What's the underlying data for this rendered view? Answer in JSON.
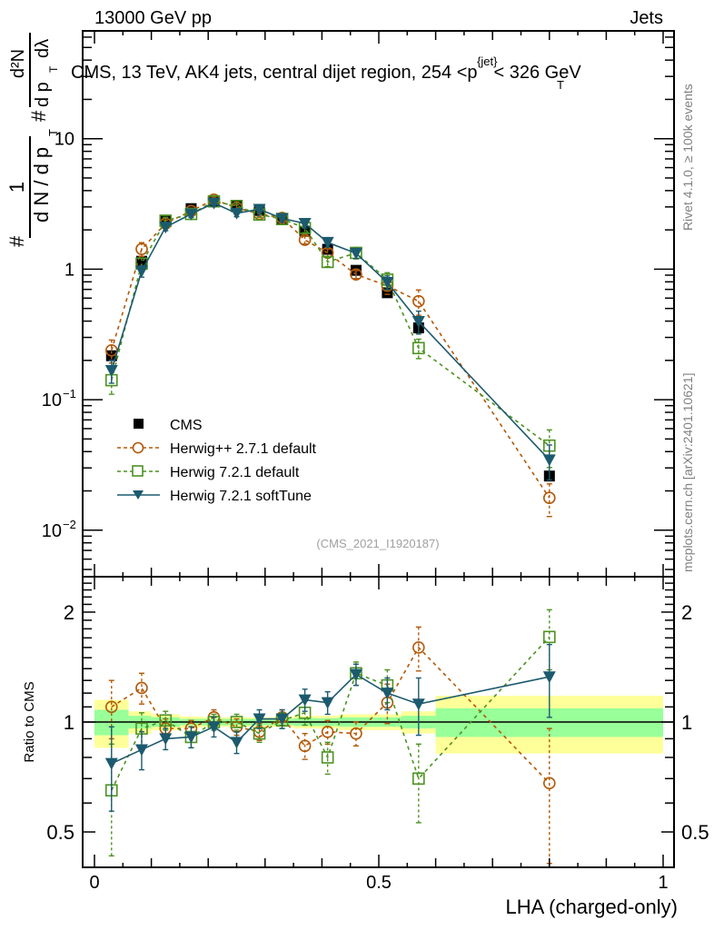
{
  "header": {
    "left": "13000 GeV pp",
    "right": "Jets"
  },
  "side_labels": {
    "rivet": "Rivet 4.1.0, ≥ 100k events",
    "mcplots": "mcplots.cern.ch [arXiv:2401.10621]"
  },
  "chart_data": {
    "type": "line",
    "title": "CMS, 13 TeV, AK4 jets, central dijet region, 254 <p_T^{jet}< 326 GeV",
    "analysis_id": "(CMS_2021_I1920187)",
    "xlabel": "LHA (charged-only)",
    "ylabel": "1/dN/dpT · d²N/dpT dλ",
    "ylabel_parts": {
      "lead": "#",
      "num1": "1",
      "den1": "d N / d p",
      "sub": "T",
      "hash2": "#",
      "num2": "d²N",
      "den2": "d p",
      "den2b": "dλ"
    },
    "xlim": [
      -0.02,
      1.02
    ],
    "ylim": [
      0.0044,
      67
    ],
    "yscale": "log",
    "x_ticks": [
      0,
      0.5,
      1
    ],
    "x_tick_labels": [
      "0",
      "0.5",
      "1"
    ],
    "y_ticks": [
      0.01,
      0.1,
      1,
      10
    ],
    "y_tick_labels": [
      [
        "10",
        "−2"
      ],
      [
        "10",
        "−1"
      ],
      [
        "1",
        ""
      ],
      [
        "10",
        ""
      ]
    ],
    "legend_position": "center-left",
    "x": [
      0.03,
      0.083,
      0.125,
      0.17,
      0.21,
      0.25,
      0.29,
      0.33,
      0.37,
      0.41,
      0.46,
      0.515,
      0.57,
      0.8
    ],
    "bin_edges": [
      0,
      0.06,
      0.1,
      0.15,
      0.19,
      0.23,
      0.27,
      0.31,
      0.35,
      0.39,
      0.43,
      0.49,
      0.54,
      0.6,
      1.0
    ],
    "series": [
      {
        "name": "CMS",
        "style": "data",
        "color": "#000000",
        "values": [
          0.217,
          1.15,
          2.33,
          2.91,
          3.31,
          3.05,
          2.82,
          2.4,
          1.95,
          1.42,
          0.98,
          0.66,
          0.355,
          0.026
        ]
      },
      {
        "name": "Herwig++ 2.7.1 default",
        "style": "circle-dashed",
        "color": "#b35806",
        "ratio": [
          1.1,
          1.24,
          0.96,
          0.96,
          1.03,
          0.97,
          0.94,
          1.03,
          0.86,
          0.94,
          0.93,
          1.13,
          1.6,
          0.68
        ],
        "ratio_err": [
          0.2,
          0.12,
          0.06,
          0.05,
          0.05,
          0.05,
          0.05,
          0.05,
          0.07,
          0.07,
          0.07,
          0.14,
          0.22,
          0.28
        ]
      },
      {
        "name": "Herwig 7.2.1 default",
        "style": "square-dashed",
        "color": "#4d9221",
        "ratio": [
          0.65,
          0.96,
          1.01,
          0.91,
          1.0,
          1.0,
          0.93,
          1.01,
          1.06,
          0.8,
          1.36,
          1.26,
          0.7,
          1.71
        ],
        "ratio_err": [
          0.22,
          0.1,
          0.06,
          0.06,
          0.05,
          0.05,
          0.05,
          0.05,
          0.08,
          0.08,
          0.1,
          0.13,
          0.17,
          0.32
        ]
      },
      {
        "name": "Herwig 7.2.1 softTune",
        "style": "triangle-solid",
        "color": "#1c5a6e",
        "ratio": [
          0.77,
          0.84,
          0.9,
          0.91,
          0.97,
          0.88,
          1.02,
          1.02,
          1.15,
          1.13,
          1.35,
          1.2,
          1.12,
          1.33
        ],
        "ratio_err": [
          0.2,
          0.1,
          0.06,
          0.06,
          0.06,
          0.06,
          0.06,
          0.06,
          0.08,
          0.08,
          0.09,
          0.12,
          0.2,
          0.3
        ]
      }
    ],
    "data_band_green": [
      0.08,
      0.04,
      0.03,
      0.02,
      0.02,
      0.02,
      0.02,
      0.02,
      0.025,
      0.025,
      0.03,
      0.03,
      0.04,
      0.09
    ],
    "data_band_yellow": [
      0.15,
      0.07,
      0.05,
      0.035,
      0.03,
      0.03,
      0.03,
      0.03,
      0.04,
      0.04,
      0.05,
      0.05,
      0.07,
      0.18
    ],
    "ratio_panel": {
      "ylabel": "Ratio to CMS",
      "yscale": "log",
      "ylim": [
        0.4,
        2.5
      ],
      "y_ticks": [
        0.5,
        1,
        2
      ],
      "y_tick_labels": [
        "0.5",
        "1",
        "2"
      ]
    }
  }
}
